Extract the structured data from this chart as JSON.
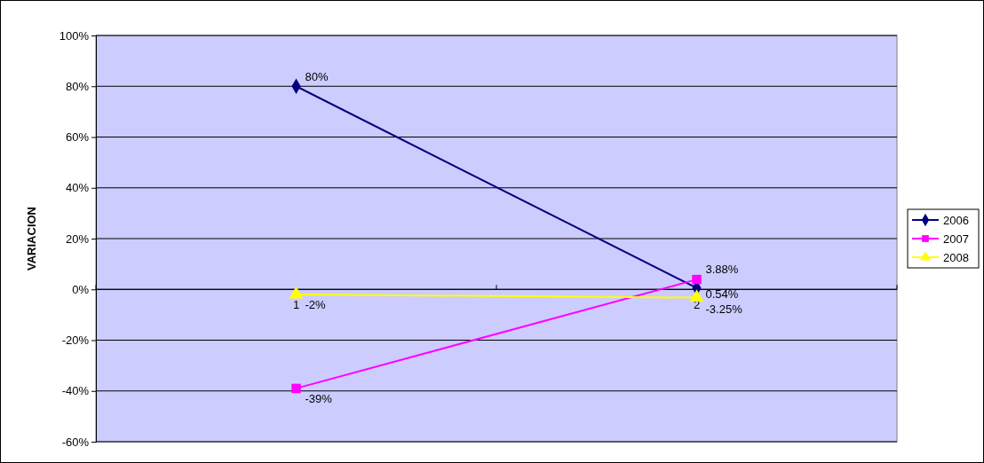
{
  "chart_data": {
    "type": "line",
    "ylabel": "VARIACION",
    "categories": [
      "1",
      "2"
    ],
    "series": [
      {
        "name": "2006",
        "color": "#000080",
        "marker": "diamond",
        "values": [
          80,
          0.54
        ],
        "value_labels": [
          "80%",
          "0.54%"
        ]
      },
      {
        "name": "2007",
        "color": "#ff00ff",
        "marker": "square",
        "values": [
          -39,
          3.88
        ],
        "value_labels": [
          "-39%",
          "3.88%"
        ]
      },
      {
        "name": "2008",
        "color": "#ffff00",
        "marker": "triangle",
        "values": [
          -2,
          -3.25
        ],
        "value_labels": [
          "-2%",
          "-3.25%"
        ]
      }
    ],
    "ylim": [
      -60,
      100
    ],
    "yticks": [
      {
        "value": -60,
        "label": "-60%"
      },
      {
        "value": -40,
        "label": "-40%"
      },
      {
        "value": -20,
        "label": "-20%"
      },
      {
        "value": 0,
        "label": "0%"
      },
      {
        "value": 20,
        "label": "20%"
      },
      {
        "value": 40,
        "label": "40%"
      },
      {
        "value": 60,
        "label": "60%"
      },
      {
        "value": 80,
        "label": "80%"
      },
      {
        "value": 100,
        "label": "100%"
      }
    ],
    "grid": "y",
    "legend": "right"
  }
}
